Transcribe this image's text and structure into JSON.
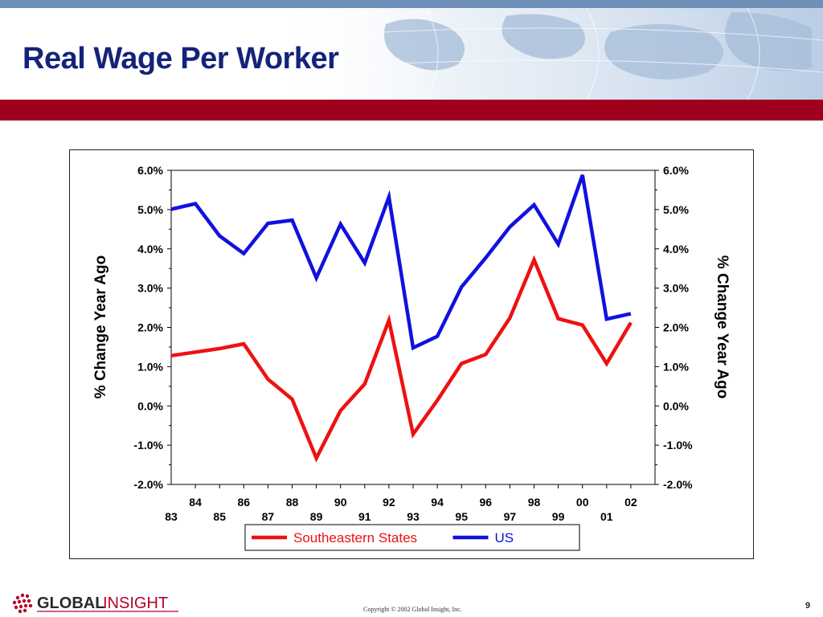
{
  "slide": {
    "title": "Real Wage Per Worker",
    "copyright": "Copyright © 2002 Global Insight, Inc.",
    "page_number": "9",
    "logo": {
      "text_bold": "GLOBAL",
      "text_light": "INSIGHT",
      "icon": "globe-dots-icon"
    },
    "colors": {
      "title": "#14237a",
      "band": "#a0001e",
      "strip": "#6d8fb8"
    }
  },
  "chart_data": {
    "type": "line",
    "x": [
      "83",
      "84",
      "85",
      "86",
      "87",
      "88",
      "89",
      "90",
      "91",
      "92",
      "93",
      "94",
      "95",
      "96",
      "97",
      "98",
      "99",
      "00",
      "01",
      "02"
    ],
    "series": [
      {
        "name": "Southeastern States",
        "color": "#ee1111",
        "values": [
          1.28,
          1.37,
          1.46,
          1.58,
          0.68,
          0.17,
          -1.33,
          -0.12,
          0.56,
          2.18,
          -0.72,
          0.14,
          1.08,
          1.31,
          2.24,
          3.72,
          2.22,
          2.06,
          1.08,
          2.12
        ]
      },
      {
        "name": "US",
        "color": "#1111dd",
        "values": [
          5.01,
          5.15,
          4.33,
          3.88,
          4.65,
          4.73,
          3.26,
          4.63,
          3.64,
          5.32,
          1.48,
          1.77,
          3.03,
          3.77,
          4.56,
          5.12,
          4.12,
          5.88,
          2.21,
          2.35
        ]
      }
    ],
    "ylim": [
      -2.0,
      6.0
    ],
    "yticks": [
      "-2.0%",
      "-1.0%",
      "0.0%",
      "1.0%",
      "2.0%",
      "3.0%",
      "4.0%",
      "5.0%",
      "6.0%"
    ],
    "ylabel_left": "% Change Year Ago",
    "ylabel_right": "% Change Year Ago",
    "xlabel": "",
    "title": "",
    "legend_position": "bottom",
    "grid": false
  }
}
